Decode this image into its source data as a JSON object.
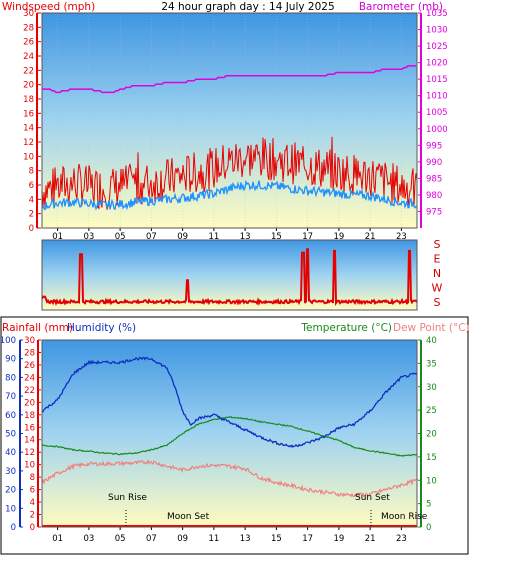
{
  "header": {
    "left_label": "Windspeed (mph)",
    "center_title": "24 hour graph day : 14 July 2025",
    "right_label": "Barometer (mb)"
  },
  "colors": {
    "wind_red": "#e60000",
    "gust_blue": "#1e90ff",
    "barometer": "#e000e0",
    "humidity": "#1030c0",
    "temperature": "#1a8a1a",
    "dewpoint": "#f08080",
    "rain": "#ff0000",
    "sky_top": "#4fa3e6",
    "sky_bottom": "#fdfbc4"
  },
  "chart_data": [
    {
      "type": "line",
      "title": "24 hour graph day : 14 July 2025",
      "x_ticks": [
        "01",
        "03",
        "05",
        "07",
        "09",
        "11",
        "13",
        "15",
        "17",
        "19",
        "21",
        "23"
      ],
      "xlim": [
        0,
        24
      ],
      "y_left": {
        "label": "Windspeed (mph)",
        "lim": [
          0,
          30
        ],
        "ticks": [
          "0",
          "2",
          "4",
          "6",
          "8",
          "10",
          "12",
          "14",
          "16",
          "18",
          "20",
          "22",
          "24",
          "26",
          "28",
          "30"
        ]
      },
      "y_right": {
        "label": "Barometer (mb)",
        "lim": [
          970,
          1035
        ],
        "ticks": [
          "975",
          "980",
          "985",
          "990",
          "995",
          "1000",
          "1005",
          "1010",
          "1015",
          "1020",
          "1025",
          "1030",
          "1035"
        ]
      },
      "series": [
        {
          "name": "Windspeed (mph)",
          "x": [
            0,
            1,
            2,
            3,
            4,
            5,
            6,
            7,
            8,
            9,
            10,
            11,
            12,
            13,
            14,
            15,
            16,
            17,
            18,
            19,
            20,
            21,
            22,
            23,
            24
          ],
          "values": [
            3,
            3.5,
            3.6,
            3.4,
            3.2,
            3.3,
            3.6,
            3.8,
            4,
            4.2,
            4.5,
            4.8,
            5.5,
            6,
            6,
            5.8,
            5.5,
            5.2,
            5,
            4.8,
            4.6,
            4.5,
            4,
            3.5,
            3.4
          ]
        },
        {
          "name": "Wind Gust (mph)",
          "x": [
            0,
            1,
            2,
            3,
            4,
            5,
            6,
            7,
            8,
            9,
            10,
            11,
            12,
            13,
            14,
            15,
            16,
            17,
            18,
            19,
            20,
            21,
            22,
            23,
            24
          ],
          "values": [
            5,
            5.5,
            6,
            5.5,
            5.2,
            5.5,
            5.8,
            6,
            6.5,
            7,
            7.5,
            8,
            9,
            9.5,
            9.5,
            9.2,
            8.8,
            8.5,
            8,
            7.5,
            7.2,
            7,
            6.2,
            5.5,
            5
          ]
        },
        {
          "name": "Barometer (mb)",
          "x": [
            0,
            0.5,
            1,
            2,
            3,
            4,
            4.5,
            5,
            6,
            7,
            8,
            9,
            10,
            11,
            12,
            13,
            14,
            15,
            16,
            17,
            18,
            19,
            20,
            21,
            22,
            23,
            23.5,
            24
          ],
          "values": [
            1012,
            1012,
            1011,
            1012,
            1012,
            1011,
            1011,
            1012,
            1013,
            1013,
            1014,
            1014,
            1015,
            1015,
            1016,
            1016,
            1016,
            1016,
            1016,
            1016,
            1016,
            1017,
            1017,
            1017,
            1018,
            1018,
            1019,
            1019
          ]
        }
      ]
    },
    {
      "type": "line",
      "x_ticks": [],
      "y_labels": [
        "S",
        "E",
        "N",
        "W",
        "S"
      ],
      "series": [
        {
          "name": "Wind direction",
          "x": [
            0,
            0.5,
            1,
            1.5,
            2,
            2.5,
            3,
            4,
            5,
            6,
            7,
            8,
            9,
            9.3,
            10,
            11,
            12,
            13,
            14,
            15,
            16,
            16.7,
            17,
            17.5,
            18,
            18.7,
            19,
            20,
            21,
            22,
            23,
            23.5,
            24
          ],
          "values": [
            15,
            35,
            20,
            30,
            25,
            300,
            25,
            28,
            30,
            22,
            26,
            30,
            25,
            150,
            28,
            24,
            30,
            26,
            28,
            32,
            27,
            310,
            330,
            24,
            28,
            320,
            30,
            25,
            45,
            28,
            30,
            320,
            26
          ]
        }
      ]
    },
    {
      "type": "line",
      "x_ticks": [
        "01",
        "03",
        "05",
        "07",
        "09",
        "11",
        "13",
        "15",
        "17",
        "19",
        "21",
        "23"
      ],
      "xlim": [
        0,
        24
      ],
      "y_left_outer": {
        "label": "Rainfall (mm)",
        "ticks": [
          "0",
          "2",
          "4",
          "6",
          "8",
          "10",
          "12",
          "14",
          "16",
          "18",
          "20",
          "22",
          "24",
          "26",
          "28",
          "30"
        ]
      },
      "y_left_inner": {
        "label": "Humidity (%)",
        "ticks": [
          "0",
          "10",
          "20",
          "30",
          "40",
          "50",
          "60",
          "70",
          "80",
          "90",
          "100"
        ]
      },
      "y_right": {
        "label": "Temperature (°C)",
        "ticks": [
          "0",
          "5",
          "10",
          "15",
          "20",
          "25",
          "30",
          "35",
          "40"
        ]
      },
      "right_title_extra": "Dew Point (°C)",
      "annotations": {
        "sun_rise_left": "Sun Rise",
        "moon_set_left": "Moon Set",
        "sun_set_right": "Sun Set",
        "moon_rise_right": "Moon Rise"
      },
      "series": [
        {
          "name": "Humidity (%)",
          "x": [
            0,
            1,
            2,
            3,
            4,
            5,
            6,
            7,
            8,
            8.5,
            9,
            9.5,
            10,
            11,
            12,
            13,
            14,
            15,
            16,
            17,
            18,
            19,
            20,
            21,
            22,
            23,
            24
          ],
          "values": [
            62,
            68,
            82,
            88,
            88,
            88,
            90,
            90,
            85,
            75,
            62,
            55,
            58,
            60,
            56,
            52,
            48,
            45,
            43,
            45,
            48,
            53,
            55,
            62,
            72,
            80,
            82
          ]
        },
        {
          "name": "Temperature (°C)",
          "x": [
            0,
            1,
            2,
            3,
            4,
            5,
            6,
            7,
            8,
            9,
            10,
            11,
            12,
            13,
            14,
            15,
            16,
            17,
            18,
            19,
            20,
            21,
            22,
            23,
            24
          ],
          "values": [
            17.5,
            17.2,
            16.5,
            16.2,
            15.8,
            15.6,
            15.8,
            16.5,
            17.5,
            20,
            22,
            23,
            23.5,
            23.2,
            22.5,
            22,
            21.5,
            20.5,
            19.5,
            18.5,
            17,
            16.3,
            15.8,
            15.2,
            15.5
          ]
        },
        {
          "name": "Dew Point (°C)",
          "x": [
            0,
            1,
            2,
            3,
            4,
            5,
            6,
            7,
            8,
            9,
            10,
            11,
            12,
            13,
            14,
            15,
            16,
            17,
            18,
            19,
            20,
            21,
            22,
            23,
            24
          ],
          "values": [
            9.5,
            11.5,
            13,
            13.5,
            13.5,
            13.6,
            13.7,
            14,
            13,
            12.2,
            13,
            13.2,
            13,
            12.5,
            10.5,
            9.5,
            8.8,
            8,
            7.5,
            7,
            6.8,
            7,
            8,
            9,
            10
          ]
        },
        {
          "name": "Rainfall (mm)",
          "x": [
            0,
            24
          ],
          "values": [
            0,
            0
          ]
        }
      ]
    }
  ]
}
